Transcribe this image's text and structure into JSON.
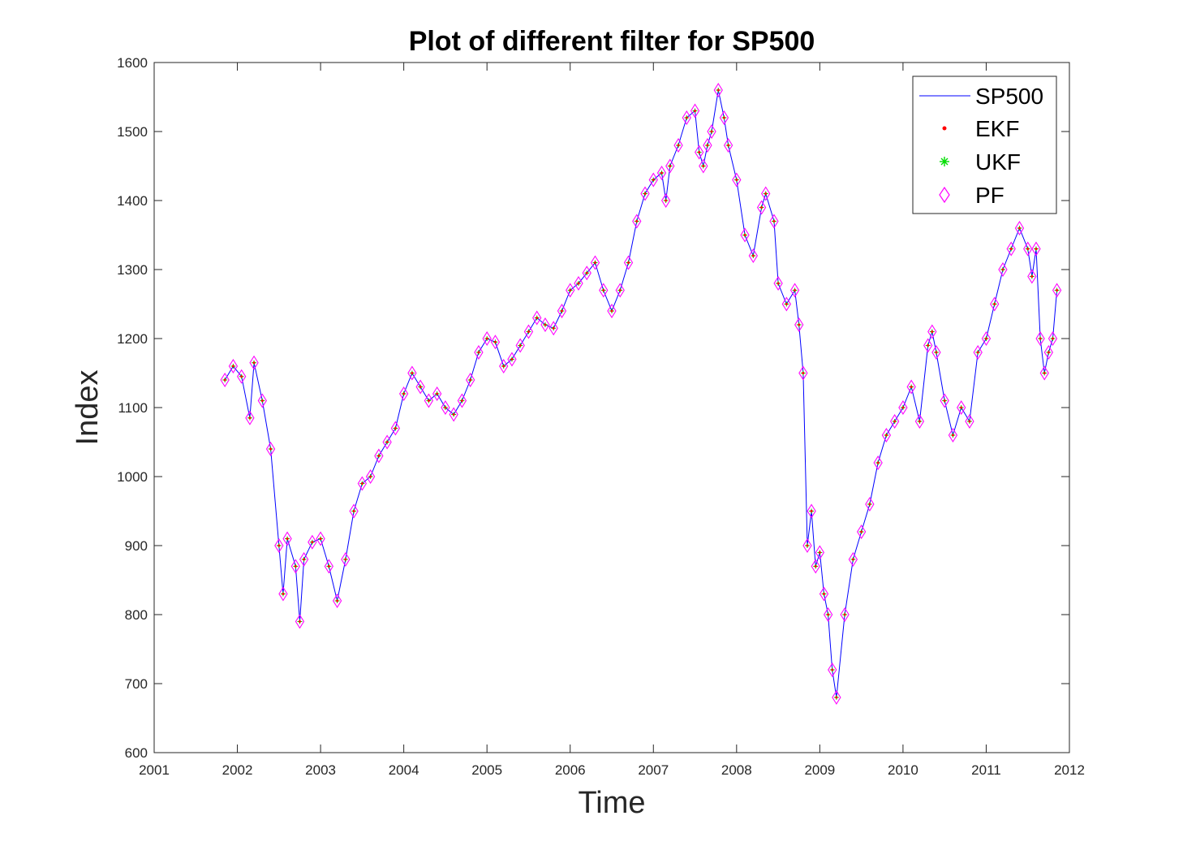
{
  "chart_data": {
    "type": "line",
    "title": "Plot of different filter for SP500",
    "xlabel": "Time",
    "ylabel": "Index",
    "xlim": [
      2001,
      2012
    ],
    "ylim": [
      600,
      1600
    ],
    "x_ticks": [
      2001,
      2002,
      2003,
      2004,
      2005,
      2006,
      2007,
      2008,
      2009,
      2010,
      2011,
      2012
    ],
    "y_ticks": [
      600,
      700,
      800,
      900,
      1000,
      1100,
      1200,
      1300,
      1400,
      1500,
      1600
    ],
    "grid": false,
    "legend_position": "top-right",
    "legend": [
      {
        "label": "SP500",
        "marker": "line",
        "color": "#0000ff"
      },
      {
        "label": "EKF",
        "marker": "dot",
        "color": "#ff0000"
      },
      {
        "label": "UKF",
        "marker": "asterisk",
        "color": "#00dd00"
      },
      {
        "label": "PF",
        "marker": "diamond",
        "color": "#ff00ff"
      }
    ],
    "series": [
      {
        "name": "SP500",
        "x": [
          2001.85,
          2001.95,
          2002.05,
          2002.15,
          2002.2,
          2002.3,
          2002.4,
          2002.5,
          2002.55,
          2002.6,
          2002.7,
          2002.75,
          2002.8,
          2002.9,
          2003.0,
          2003.1,
          2003.2,
          2003.3,
          2003.4,
          2003.5,
          2003.6,
          2003.7,
          2003.8,
          2003.9,
          2004.0,
          2004.1,
          2004.2,
          2004.3,
          2004.4,
          2004.5,
          2004.6,
          2004.7,
          2004.8,
          2004.9,
          2005.0,
          2005.1,
          2005.2,
          2005.3,
          2005.4,
          2005.5,
          2005.6,
          2005.7,
          2005.8,
          2005.9,
          2006.0,
          2006.1,
          2006.2,
          2006.3,
          2006.4,
          2006.5,
          2006.6,
          2006.7,
          2006.8,
          2006.9,
          2007.0,
          2007.1,
          2007.15,
          2007.2,
          2007.3,
          2007.4,
          2007.5,
          2007.55,
          2007.6,
          2007.65,
          2007.7,
          2007.78,
          2007.85,
          2007.9,
          2008.0,
          2008.1,
          2008.2,
          2008.3,
          2008.35,
          2008.45,
          2008.5,
          2008.6,
          2008.7,
          2008.75,
          2008.8,
          2008.85,
          2008.9,
          2008.95,
          2009.0,
          2009.05,
          2009.1,
          2009.15,
          2009.2,
          2009.3,
          2009.4,
          2009.5,
          2009.6,
          2009.7,
          2009.8,
          2009.9,
          2010.0,
          2010.1,
          2010.2,
          2010.3,
          2010.35,
          2010.4,
          2010.5,
          2010.6,
          2010.7,
          2010.8,
          2010.9,
          2011.0,
          2011.1,
          2011.2,
          2011.3,
          2011.4,
          2011.5,
          2011.55,
          2011.6,
          2011.65,
          2011.7,
          2011.75,
          2011.8,
          2011.85
        ],
        "values": [
          1140,
          1160,
          1145,
          1085,
          1165,
          1110,
          1040,
          900,
          830,
          910,
          870,
          790,
          880,
          905,
          910,
          870,
          820,
          880,
          950,
          990,
          1000,
          1030,
          1050,
          1070,
          1120,
          1150,
          1130,
          1110,
          1120,
          1100,
          1090,
          1110,
          1140,
          1180,
          1200,
          1195,
          1160,
          1170,
          1190,
          1210,
          1230,
          1220,
          1215,
          1240,
          1270,
          1280,
          1295,
          1310,
          1270,
          1240,
          1270,
          1310,
          1370,
          1410,
          1430,
          1440,
          1400,
          1450,
          1480,
          1520,
          1530,
          1470,
          1450,
          1480,
          1500,
          1560,
          1520,
          1480,
          1430,
          1350,
          1320,
          1390,
          1410,
          1370,
          1280,
          1250,
          1270,
          1220,
          1150,
          900,
          950,
          870,
          890,
          830,
          800,
          720,
          680,
          800,
          880,
          920,
          960,
          1020,
          1060,
          1080,
          1100,
          1130,
          1080,
          1190,
          1210,
          1180,
          1110,
          1060,
          1100,
          1080,
          1180,
          1200,
          1250,
          1300,
          1330,
          1360,
          1330,
          1290,
          1330,
          1200,
          1150,
          1180,
          1200,
          1270
        ]
      }
    ]
  }
}
